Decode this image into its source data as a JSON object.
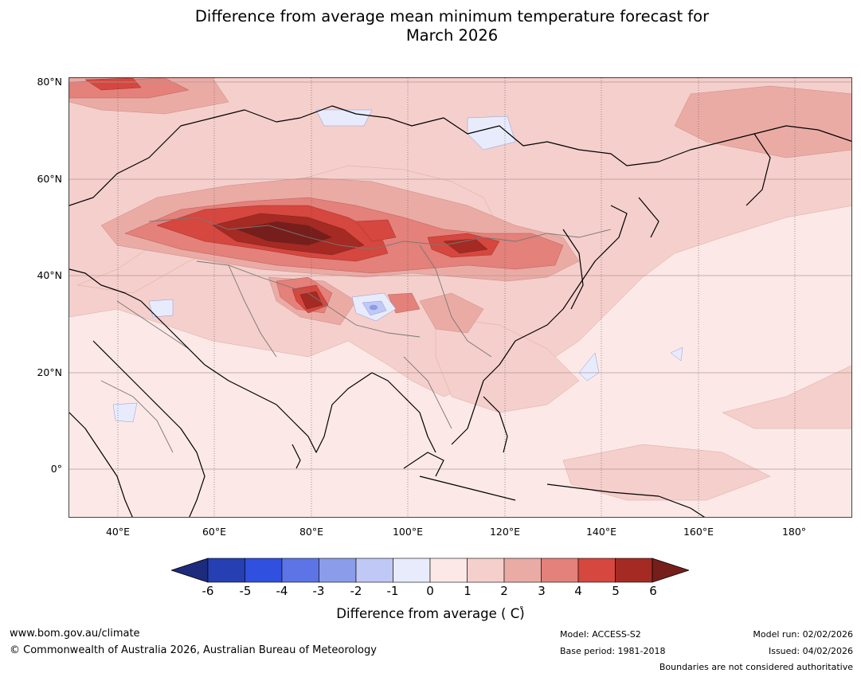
{
  "title": {
    "line1": "Difference from average mean minimum temperature forecast for",
    "line2": "March 2026"
  },
  "axes": {
    "lat_labels": [
      "80°N",
      "60°N",
      "40°N",
      "20°N",
      "0°"
    ],
    "lon_labels": [
      "40°E",
      "60°E",
      "80°E",
      "100°E",
      "120°E",
      "140°E",
      "160°E",
      "180°"
    ]
  },
  "map_data": {
    "type": "contour-map",
    "variable": "Difference from average mean minimum temperature (°C)",
    "region": "Asia",
    "lat_range": [
      -10,
      80
    ],
    "lon_range": [
      30,
      192
    ],
    "features": [
      "coastlines",
      "country-boundaries",
      "graticule"
    ],
    "anomaly_hotspots": [
      {
        "area": "Kazakhstan / Central Asia",
        "anomaly": "5 to 6+"
      },
      {
        "area": "Western Mongolia / Altai",
        "anomaly": "4 to 6"
      },
      {
        "area": "Northern China / Mongolia",
        "anomaly": "4 to 5"
      },
      {
        "area": "Western Himalaya / Tibet",
        "anomaly": "4 to 6"
      },
      {
        "area": "Arctic north of Scandinavia",
        "anomaly": "3 to 5"
      }
    ],
    "cool_spots": [
      {
        "area": "Central Tibetan Plateau",
        "anomaly": "-2 to 0"
      },
      {
        "area": "Central Siberia",
        "anomaly": "-1 to 0"
      },
      {
        "area": "Iran",
        "anomaly": "-1 to 0"
      }
    ]
  },
  "colorbar": {
    "ticks": [
      "-6",
      "-5",
      "-4",
      "-3",
      "-2",
      "-1",
      "0",
      "1",
      "2",
      "3",
      "4",
      "5",
      "6"
    ],
    "colors": [
      "#1c2b7c",
      "#263fb3",
      "#3050e0",
      "#5c74e6",
      "#8b9ceb",
      "#c0c8f5",
      "#e8ebfb",
      "#fce9e7",
      "#f5cfcb",
      "#ebaba5",
      "#e3817a",
      "#d5473f",
      "#a52a24",
      "#761e1b"
    ],
    "label": "Difference from average ( C)",
    "degree_symbol": "°"
  },
  "footer": {
    "website": "www.bom.gov.au/climate",
    "copyright": "© Commonwealth of Australia 2026, Australian Bureau of Meteorology",
    "model": "Model: ACCESS-S2",
    "base_period": "Base period: 1981-2018",
    "model_run": "Model run: 02/02/2026",
    "issued": "Issued: 04/02/2026",
    "disclaimer": "Boundaries are not considered authoritative"
  }
}
